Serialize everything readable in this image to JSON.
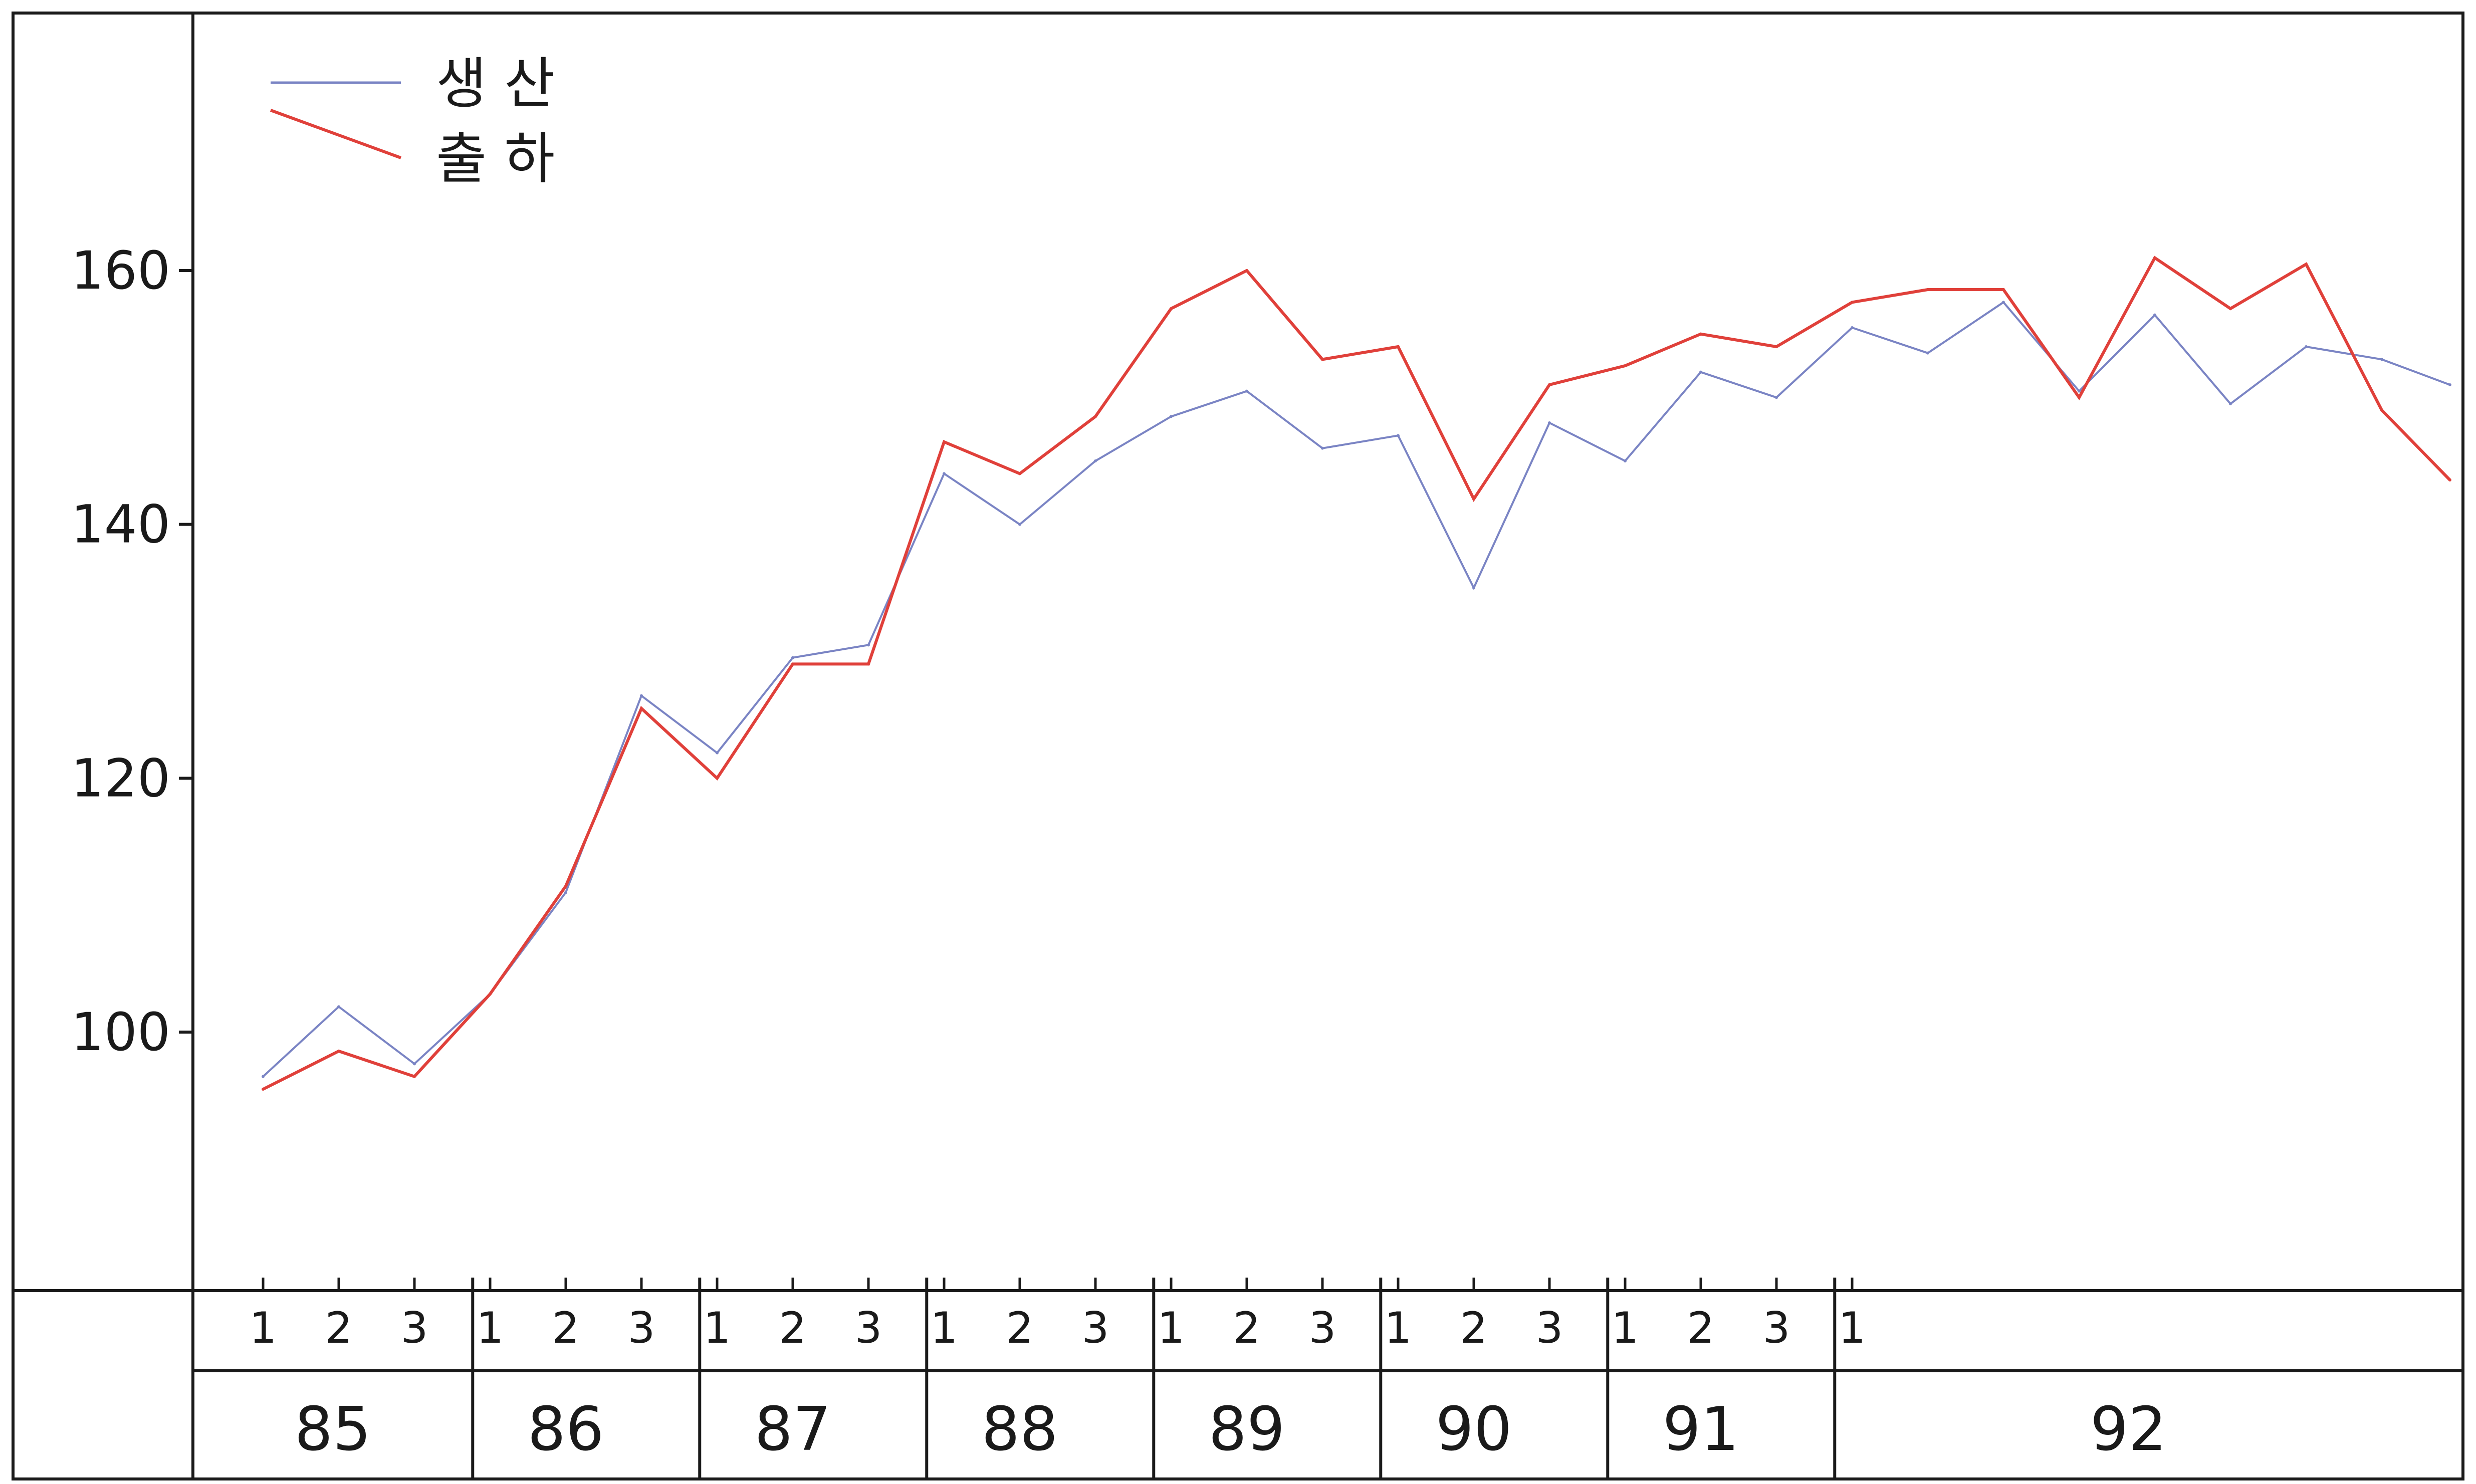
{
  "chart_data": {
    "type": "line",
    "title": "",
    "xlabel": "",
    "ylabel": "",
    "ylim": [
      80,
      180
    ],
    "y_ticks": [
      100,
      120,
      140,
      160
    ],
    "grid": false,
    "legend_position": "top-left",
    "years": [
      {
        "label": "85",
        "quarters": [
          "1",
          "2",
          "3"
        ]
      },
      {
        "label": "86",
        "quarters": [
          "1",
          "2",
          "3"
        ]
      },
      {
        "label": "87",
        "quarters": [
          "1",
          "2",
          "3"
        ]
      },
      {
        "label": "88",
        "quarters": [
          "1",
          "2",
          "3"
        ]
      },
      {
        "label": "89",
        "quarters": [
          "1",
          "2",
          "3"
        ]
      },
      {
        "label": "90",
        "quarters": [
          "1",
          "2",
          "3"
        ]
      },
      {
        "label": "91",
        "quarters": [
          "1",
          "2",
          "3"
        ]
      },
      {
        "label": "92",
        "quarters": [
          "1"
        ]
      }
    ],
    "x_count": 30,
    "x_extra_end": 0.9,
    "series": [
      {
        "name": "생   산",
        "color": "#7a84c4",
        "values": [
          96.5,
          102,
          97.5,
          103,
          111,
          126.5,
          122,
          129.5,
          130.5,
          144,
          140,
          145,
          148.5,
          150.5,
          146,
          147,
          135,
          148,
          145,
          152,
          150,
          155.5,
          153.5,
          157.5,
          150.5,
          156.5,
          149.5,
          154,
          153,
          151
        ]
      },
      {
        "name": "출   하",
        "color": "#e0403a",
        "values": [
          95.5,
          98.5,
          96.5,
          103,
          111.5,
          125.5,
          120,
          129,
          129,
          146.5,
          144,
          148.5,
          157,
          160,
          153,
          154,
          142,
          151,
          152.5,
          155,
          154,
          157.5,
          158.5,
          158.5,
          150,
          161,
          157,
          160.5,
          149,
          143.5
        ]
      }
    ]
  }
}
